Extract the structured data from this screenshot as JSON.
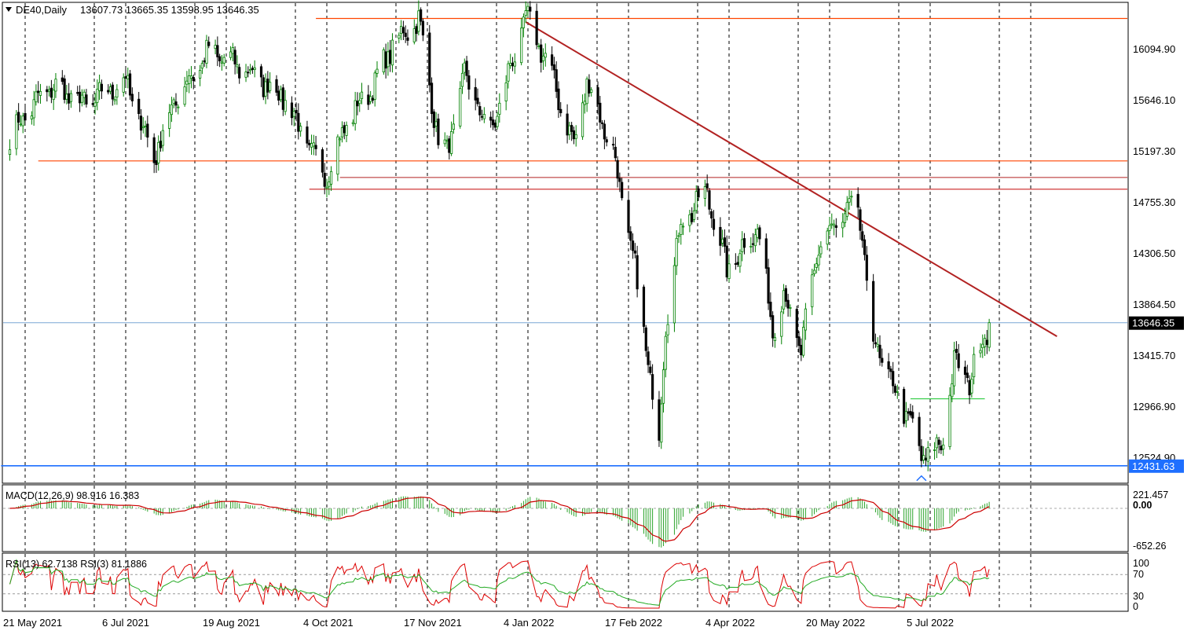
{
  "header": {
    "symbol": "DE40,Daily",
    "ohlc": "13607.73 13665.35 13598.95 13646.35"
  },
  "price_axis": {
    "labels": [
      "16094.90",
      "15646.10",
      "15197.30",
      "14755.30",
      "14306.50",
      "13864.50",
      "13415.70",
      "12966.90",
      "12524.90"
    ],
    "current_price": "13646.35",
    "support_label": "12431.63"
  },
  "macd": {
    "label": "MACD(12,26,9) 98.916 16.383",
    "axis_labels": [
      "221.457",
      "0.00",
      "-652.26"
    ]
  },
  "rsi": {
    "label": "RSI(13) 62.7138  RSI(3) 81.1886",
    "axis_labels": [
      "100",
      "70",
      "30",
      "0"
    ]
  },
  "time_axis": {
    "labels": [
      "21 May 2021",
      "6 Jul 2021",
      "19 Aug 2021",
      "4 Oct 2021",
      "17 Nov 2021",
      "4 Jan 2022",
      "17 Feb 2022",
      "4 Apr 2022",
      "20 May 2022",
      "5 Jul 2022"
    ]
  },
  "colors": {
    "bull_candle": "#008000",
    "bear_candle": "#000000",
    "resistance_line": "#ff4500",
    "trend_line": "#b22222",
    "support_line": "#1e6fff",
    "current_price_line": "#7aa7d6",
    "macd_hist": "#2ea52e",
    "macd_signal": "#cc0000",
    "rsi_fast": "#dd0000",
    "rsi_slow": "#22aa22"
  },
  "chart_data": {
    "type": "candlestick",
    "symbol": "DE40",
    "timeframe": "Daily",
    "ylim": [
      12290,
      16360
    ],
    "last_close": 13646.35,
    "anchors": [
      [
        "2021-05-14",
        15200
      ],
      [
        "2021-05-21",
        15420
      ],
      [
        "2021-06-02",
        15650
      ],
      [
        "2021-06-18",
        15500
      ],
      [
        "2021-07-06",
        15700
      ],
      [
        "2021-07-19",
        15050
      ],
      [
        "2021-07-29",
        15550
      ],
      [
        "2021-08-13",
        15950
      ],
      [
        "2021-08-30",
        15800
      ],
      [
        "2021-09-10",
        15650
      ],
      [
        "2021-09-17",
        15550
      ],
      [
        "2021-09-30",
        15050
      ],
      [
        "2021-10-06",
        14900
      ],
      [
        "2021-10-15",
        15350
      ],
      [
        "2021-10-28",
        15680
      ],
      [
        "2021-11-05",
        16000
      ],
      [
        "2021-11-17",
        16230
      ],
      [
        "2021-11-26",
        15200
      ],
      [
        "2021-11-30",
        15080
      ],
      [
        "2021-12-08",
        15750
      ],
      [
        "2021-12-20",
        15250
      ],
      [
        "2022-01-05",
        16250
      ],
      [
        "2022-01-14",
        15900
      ],
      [
        "2022-01-27",
        15150
      ],
      [
        "2022-02-02",
        15700
      ],
      [
        "2022-02-14",
        15100
      ],
      [
        "2022-02-24",
        14100
      ],
      [
        "2022-03-07",
        12650
      ],
      [
        "2022-03-10",
        13650
      ],
      [
        "2022-03-17",
        14500
      ],
      [
        "2022-03-29",
        14750
      ],
      [
        "2022-04-07",
        14100
      ],
      [
        "2022-04-21",
        14450
      ],
      [
        "2022-04-28",
        13600
      ],
      [
        "2022-05-03",
        13900
      ],
      [
        "2022-05-11",
        13400
      ],
      [
        "2022-05-19",
        14300
      ],
      [
        "2022-05-27",
        14480
      ],
      [
        "2022-06-06",
        14650
      ],
      [
        "2022-06-13",
        13500
      ],
      [
        "2022-06-22",
        13100
      ],
      [
        "2022-06-30",
        12800
      ],
      [
        "2022-07-05",
        12500
      ],
      [
        "2022-07-14",
        12600
      ],
      [
        "2022-07-20",
        13300
      ],
      [
        "2022-07-27",
        13150
      ],
      [
        "2022-08-03",
        13550
      ],
      [
        "2022-08-05",
        13646.35
      ]
    ],
    "horizontal_levels": [
      {
        "price": 16230,
        "from": "2021-10-01"
      },
      {
        "price": 15020,
        "from": "2021-05-27"
      },
      {
        "price": 14880,
        "from": "2021-10-12"
      },
      {
        "price": 14780,
        "from": "2021-09-28"
      },
      {
        "price": 13000,
        "from": "2022-06-30",
        "to": "2022-08-03"
      },
      {
        "price": 12431.63,
        "from": "2021-05-10"
      }
    ],
    "trendline": {
      "from": [
        "2022-01-05",
        16200
      ],
      "to": [
        "2022-09-05",
        13530
      ]
    },
    "macd": {
      "ylim": [
        -652.26,
        221.457
      ],
      "fast": 12,
      "slow": 26,
      "signal": 9,
      "main": 98.916,
      "signal_value": 16.383
    },
    "rsi": {
      "ylim": [
        0,
        100
      ],
      "levels": [
        30,
        70
      ],
      "rsi13": 62.7138,
      "rsi3": 81.1886
    }
  }
}
